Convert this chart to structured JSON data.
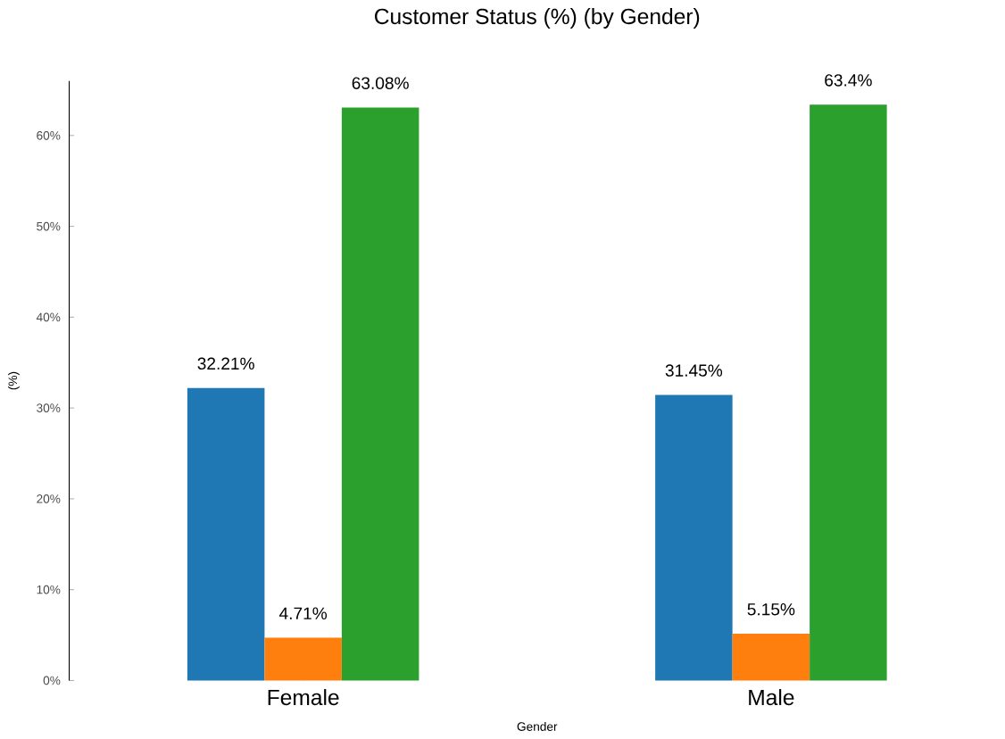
{
  "chart_data": {
    "type": "bar",
    "title": "Customer Status (%) (by Gender)",
    "xlabel": "Gender",
    "ylabel": "(%)",
    "categories": [
      "Female",
      "Male"
    ],
    "series": [
      {
        "color": "#1f77b4",
        "values": [
          32.21,
          31.45
        ],
        "value_labels": [
          "32.21%",
          "31.45%"
        ]
      },
      {
        "color": "#ff7f0e",
        "values": [
          4.71,
          5.15
        ],
        "value_labels": [
          "4.71%",
          "5.15%"
        ]
      },
      {
        "color": "#2ca02c",
        "values": [
          63.08,
          63.4
        ],
        "value_labels": [
          "63.08%",
          "63.4%"
        ]
      }
    ],
    "ylim": [
      0,
      66
    ],
    "yticks": [
      {
        "value": 0,
        "label": "0%"
      },
      {
        "value": 10,
        "label": "10%"
      },
      {
        "value": 20,
        "label": "20%"
      },
      {
        "value": 30,
        "label": "30%"
      },
      {
        "value": 40,
        "label": "40%"
      },
      {
        "value": 50,
        "label": "50%"
      },
      {
        "value": 60,
        "label": "60%"
      }
    ],
    "grid": false
  }
}
